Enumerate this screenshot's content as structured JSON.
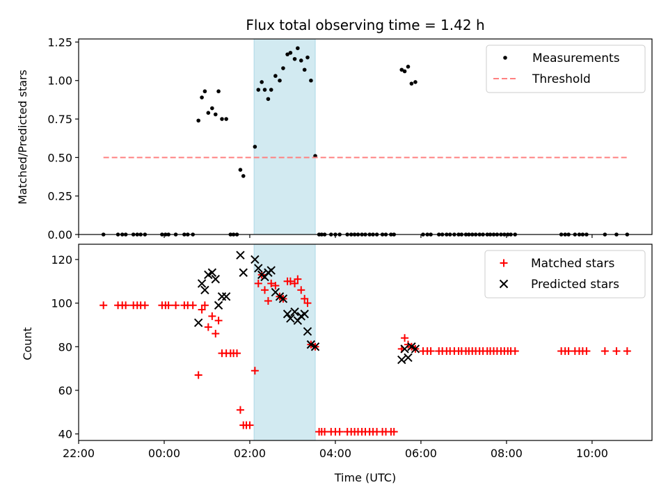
{
  "chart_data": [
    {
      "type": "scatter",
      "title": "Flux total observing time = 1.42 h",
      "xlabel": "",
      "ylabel": "Matched/Predicted stars",
      "xlim": [
        -2.0,
        11.4
      ],
      "ylim": [
        0.0,
        1.27
      ],
      "yticks": [
        0.0,
        0.25,
        0.5,
        0.75,
        1.0,
        1.25
      ],
      "ytick_labels": [
        "0.00",
        "0.25",
        "0.50",
        "0.75",
        "1.00",
        "1.25"
      ],
      "highlight_band": {
        "x0": 2.1,
        "x1": 3.53,
        "color": "#add8e6"
      },
      "legend": {
        "position": "upper-right",
        "entries": [
          "Measurements",
          "Threshold"
        ]
      },
      "series": [
        {
          "name": "Measurements",
          "marker": "dot",
          "color": "#000000",
          "points": [
            [
              -1.42,
              0
            ],
            [
              -1.08,
              0
            ],
            [
              -0.98,
              0
            ],
            [
              -0.9,
              0
            ],
            [
              -0.72,
              0
            ],
            [
              -0.63,
              0
            ],
            [
              -0.55,
              0
            ],
            [
              -0.45,
              0
            ],
            [
              -0.05,
              0
            ],
            [
              0.03,
              0
            ],
            [
              0.1,
              0
            ],
            [
              0.27,
              0
            ],
            [
              0.47,
              0
            ],
            [
              0.55,
              0
            ],
            [
              0.67,
              0
            ],
            [
              0.8,
              0.74
            ],
            [
              0.88,
              0.89
            ],
            [
              0.95,
              0.93
            ],
            [
              1.03,
              0.79
            ],
            [
              1.12,
              0.82
            ],
            [
              1.2,
              0.78
            ],
            [
              1.27,
              0.93
            ],
            [
              1.35,
              0.75
            ],
            [
              1.45,
              0.75
            ],
            [
              1.55,
              0
            ],
            [
              1.62,
              0
            ],
            [
              1.7,
              0
            ],
            [
              1.78,
              0.42
            ],
            [
              1.85,
              0.38
            ],
            [
              2.12,
              0.57
            ],
            [
              2.2,
              0.94
            ],
            [
              2.28,
              0.99
            ],
            [
              2.35,
              0.94
            ],
            [
              2.43,
              0.88
            ],
            [
              2.5,
              0.94
            ],
            [
              2.6,
              1.03
            ],
            [
              2.7,
              1.0
            ],
            [
              2.78,
              1.08
            ],
            [
              2.88,
              1.17
            ],
            [
              2.95,
              1.18
            ],
            [
              3.05,
              1.14
            ],
            [
              3.12,
              1.21
            ],
            [
              3.2,
              1.13
            ],
            [
              3.28,
              1.07
            ],
            [
              3.35,
              1.15
            ],
            [
              3.43,
              1.0
            ],
            [
              3.53,
              0.51
            ],
            [
              3.62,
              0
            ],
            [
              3.68,
              0
            ],
            [
              3.75,
              0
            ],
            [
              3.9,
              0
            ],
            [
              4.0,
              0
            ],
            [
              4.1,
              0
            ],
            [
              4.28,
              0
            ],
            [
              4.37,
              0
            ],
            [
              4.45,
              0
            ],
            [
              4.53,
              0
            ],
            [
              4.62,
              0
            ],
            [
              4.7,
              0
            ],
            [
              4.8,
              0
            ],
            [
              4.88,
              0
            ],
            [
              4.97,
              0
            ],
            [
              5.1,
              0
            ],
            [
              5.18,
              0
            ],
            [
              5.3,
              0
            ],
            [
              5.37,
              0
            ],
            [
              5.55,
              1.07
            ],
            [
              5.62,
              1.06
            ],
            [
              5.7,
              1.09
            ],
            [
              5.78,
              0.98
            ],
            [
              5.87,
              0.99
            ],
            [
              6.05,
              0
            ],
            [
              6.15,
              0
            ],
            [
              6.23,
              0
            ],
            [
              6.42,
              0
            ],
            [
              6.5,
              0
            ],
            [
              6.6,
              0
            ],
            [
              6.68,
              0
            ],
            [
              6.78,
              0
            ],
            [
              6.88,
              0
            ],
            [
              6.95,
              0
            ],
            [
              7.05,
              0
            ],
            [
              7.12,
              0
            ],
            [
              7.2,
              0
            ],
            [
              7.28,
              0
            ],
            [
              7.37,
              0
            ],
            [
              7.45,
              0
            ],
            [
              7.55,
              0
            ],
            [
              7.62,
              0
            ],
            [
              7.7,
              0
            ],
            [
              7.78,
              0
            ],
            [
              7.87,
              0
            ],
            [
              7.95,
              0
            ],
            [
              8.03,
              0
            ],
            [
              8.1,
              0
            ],
            [
              8.2,
              0
            ],
            [
              9.28,
              0
            ],
            [
              9.37,
              0
            ],
            [
              9.45,
              0
            ],
            [
              9.6,
              0
            ],
            [
              9.7,
              0
            ],
            [
              9.78,
              0
            ],
            [
              9.87,
              0
            ],
            [
              10.3,
              0
            ],
            [
              10.57,
              0
            ],
            [
              10.82,
              0
            ]
          ]
        },
        {
          "name": "Threshold",
          "style": "dashed",
          "color": "#ff8080",
          "x": [
            -1.42,
            10.82
          ],
          "y": [
            0.5,
            0.5
          ]
        }
      ]
    },
    {
      "type": "scatter",
      "xlabel": "Time (UTC)",
      "ylabel": "Count",
      "xlim": [
        -2.0,
        11.4
      ],
      "ylim": [
        37,
        127
      ],
      "yticks": [
        40,
        60,
        80,
        100,
        120
      ],
      "ytick_labels": [
        "40",
        "60",
        "80",
        "100",
        "120"
      ],
      "xticks": [
        -2,
        0,
        2,
        4,
        6,
        8,
        10
      ],
      "xtick_labels": [
        "22:00",
        "00:00",
        "02:00",
        "04:00",
        "06:00",
        "08:00",
        "10:00"
      ],
      "highlight_band": {
        "x0": 2.1,
        "x1": 3.53,
        "color": "#add8e6"
      },
      "legend": {
        "position": "upper-right",
        "entries": [
          "Matched stars",
          "Predicted stars"
        ]
      },
      "series": [
        {
          "name": "Matched stars",
          "marker": "plus",
          "color": "#ff0000",
          "points": [
            [
              -1.42,
              99
            ],
            [
              -1.08,
              99
            ],
            [
              -0.98,
              99
            ],
            [
              -0.9,
              99
            ],
            [
              -0.72,
              99
            ],
            [
              -0.63,
              99
            ],
            [
              -0.55,
              99
            ],
            [
              -0.45,
              99
            ],
            [
              -0.05,
              99
            ],
            [
              0.03,
              99
            ],
            [
              0.1,
              99
            ],
            [
              0.27,
              99
            ],
            [
              0.47,
              99
            ],
            [
              0.55,
              99
            ],
            [
              0.67,
              99
            ],
            [
              0.8,
              67
            ],
            [
              0.88,
              97
            ],
            [
              0.95,
              99
            ],
            [
              1.03,
              89
            ],
            [
              1.12,
              94
            ],
            [
              1.2,
              86
            ],
            [
              1.27,
              92
            ],
            [
              1.35,
              77
            ],
            [
              1.45,
              77
            ],
            [
              1.55,
              77
            ],
            [
              1.62,
              77
            ],
            [
              1.7,
              77
            ],
            [
              1.78,
              51
            ],
            [
              1.85,
              44
            ],
            [
              1.92,
              44
            ],
            [
              2.0,
              44
            ],
            [
              2.12,
              69
            ],
            [
              2.2,
              109
            ],
            [
              2.28,
              113
            ],
            [
              2.35,
              106
            ],
            [
              2.43,
              101
            ],
            [
              2.5,
              109
            ],
            [
              2.6,
              108
            ],
            [
              2.7,
              103
            ],
            [
              2.78,
              102
            ],
            [
              2.88,
              110
            ],
            [
              2.95,
              110
            ],
            [
              3.05,
              109
            ],
            [
              3.12,
              111
            ],
            [
              3.2,
              106
            ],
            [
              3.28,
              102
            ],
            [
              3.35,
              100
            ],
            [
              3.43,
              81
            ],
            [
              3.53,
              80
            ],
            [
              3.62,
              41
            ],
            [
              3.68,
              41
            ],
            [
              3.75,
              41
            ],
            [
              3.9,
              41
            ],
            [
              4.0,
              41
            ],
            [
              4.1,
              41
            ],
            [
              4.28,
              41
            ],
            [
              4.37,
              41
            ],
            [
              4.45,
              41
            ],
            [
              4.53,
              41
            ],
            [
              4.62,
              41
            ],
            [
              4.7,
              41
            ],
            [
              4.8,
              41
            ],
            [
              4.88,
              41
            ],
            [
              4.97,
              41
            ],
            [
              5.1,
              41
            ],
            [
              5.18,
              41
            ],
            [
              5.3,
              41
            ],
            [
              5.37,
              41
            ],
            [
              5.55,
              79
            ],
            [
              5.62,
              84
            ],
            [
              5.7,
              81
            ],
            [
              5.78,
              80
            ],
            [
              5.87,
              79
            ],
            [
              6.05,
              78
            ],
            [
              6.15,
              78
            ],
            [
              6.23,
              78
            ],
            [
              6.42,
              78
            ],
            [
              6.5,
              78
            ],
            [
              6.6,
              78
            ],
            [
              6.68,
              78
            ],
            [
              6.78,
              78
            ],
            [
              6.88,
              78
            ],
            [
              6.95,
              78
            ],
            [
              7.05,
              78
            ],
            [
              7.12,
              78
            ],
            [
              7.2,
              78
            ],
            [
              7.28,
              78
            ],
            [
              7.37,
              78
            ],
            [
              7.45,
              78
            ],
            [
              7.55,
              78
            ],
            [
              7.62,
              78
            ],
            [
              7.7,
              78
            ],
            [
              7.78,
              78
            ],
            [
              7.87,
              78
            ],
            [
              7.95,
              78
            ],
            [
              8.03,
              78
            ],
            [
              8.1,
              78
            ],
            [
              8.2,
              78
            ],
            [
              9.28,
              78
            ],
            [
              9.37,
              78
            ],
            [
              9.45,
              78
            ],
            [
              9.6,
              78
            ],
            [
              9.7,
              78
            ],
            [
              9.78,
              78
            ],
            [
              9.87,
              78
            ],
            [
              10.3,
              78
            ],
            [
              10.57,
              78
            ],
            [
              10.82,
              78
            ]
          ]
        },
        {
          "name": "Predicted stars",
          "marker": "cross",
          "color": "#000000",
          "points": [
            [
              0.8,
              91
            ],
            [
              0.88,
              109
            ],
            [
              0.95,
              106
            ],
            [
              1.03,
              113
            ],
            [
              1.12,
              114
            ],
            [
              1.2,
              111
            ],
            [
              1.27,
              99
            ],
            [
              1.35,
              103
            ],
            [
              1.45,
              103
            ],
            [
              1.78,
              122
            ],
            [
              1.85,
              114
            ],
            [
              2.12,
              120
            ],
            [
              2.2,
              116
            ],
            [
              2.28,
              113
            ],
            [
              2.35,
              112
            ],
            [
              2.43,
              114
            ],
            [
              2.5,
              115
            ],
            [
              2.6,
              105
            ],
            [
              2.7,
              103
            ],
            [
              2.78,
              102
            ],
            [
              2.88,
              95
            ],
            [
              2.95,
              93
            ],
            [
              3.05,
              96
            ],
            [
              3.12,
              92
            ],
            [
              3.2,
              94
            ],
            [
              3.28,
              95
            ],
            [
              3.35,
              87
            ],
            [
              3.43,
              81
            ],
            [
              3.53,
              80
            ],
            [
              5.55,
              74
            ],
            [
              5.62,
              79
            ],
            [
              5.7,
              75
            ],
            [
              5.78,
              80
            ],
            [
              5.87,
              79
            ]
          ]
        }
      ]
    }
  ]
}
